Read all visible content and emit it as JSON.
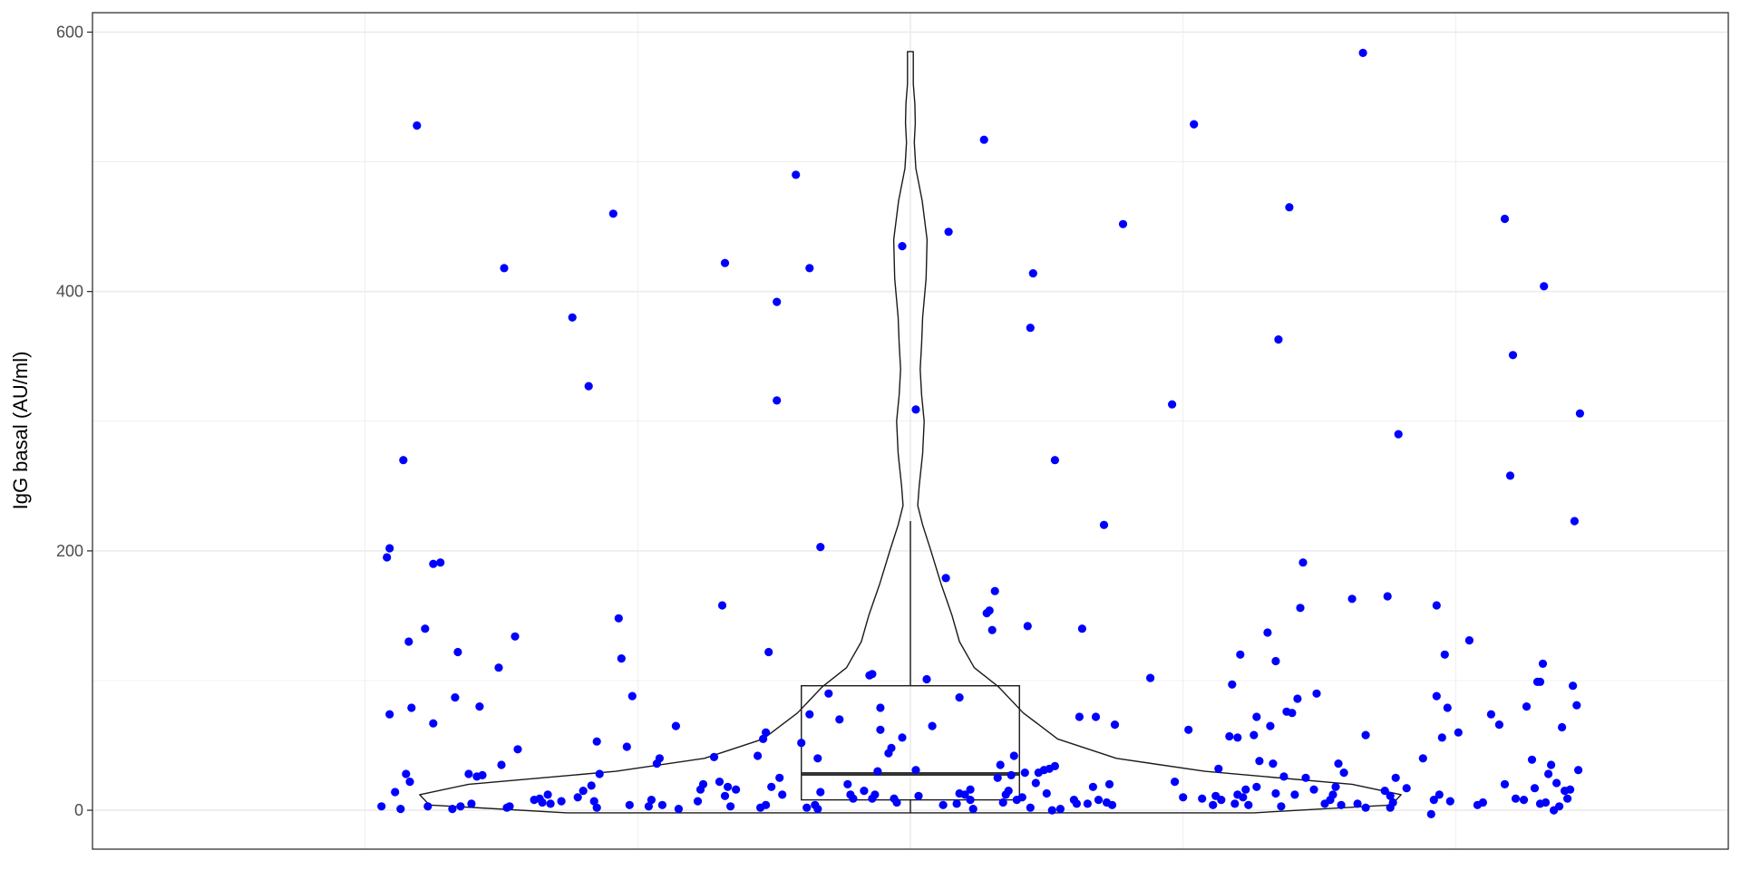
{
  "chart_data": {
    "type": "scatter",
    "overlays": [
      "violin",
      "boxplot"
    ],
    "title": "",
    "xlabel": "",
    "ylabel": "IgG basal (AU/ml)",
    "ylim": [
      -30,
      615
    ],
    "y_ticks": [
      0,
      200,
      400,
      600
    ],
    "y_tick_labels": [
      "0",
      "200",
      "400",
      "600"
    ],
    "grid": true,
    "point_color": "#0000ff",
    "box": {
      "q1": 8,
      "median": 28,
      "q3": 96,
      "whisker_low": -2,
      "whisker_high": 223
    },
    "violin_range": [
      -2,
      585
    ],
    "violin_profile": [
      {
        "y": -2,
        "w": 0.7
      },
      {
        "y": 4,
        "w": 0.98
      },
      {
        "y": 12,
        "w": 1.0
      },
      {
        "y": 20,
        "w": 0.9
      },
      {
        "y": 30,
        "w": 0.6
      },
      {
        "y": 40,
        "w": 0.42
      },
      {
        "y": 55,
        "w": 0.3
      },
      {
        "y": 75,
        "w": 0.23
      },
      {
        "y": 95,
        "w": 0.18
      },
      {
        "y": 110,
        "w": 0.13
      },
      {
        "y": 130,
        "w": 0.1
      },
      {
        "y": 150,
        "w": 0.085
      },
      {
        "y": 175,
        "w": 0.062
      },
      {
        "y": 200,
        "w": 0.042
      },
      {
        "y": 220,
        "w": 0.025
      },
      {
        "y": 235,
        "w": 0.015
      },
      {
        "y": 250,
        "w": 0.018
      },
      {
        "y": 275,
        "w": 0.025
      },
      {
        "y": 300,
        "w": 0.028
      },
      {
        "y": 320,
        "w": 0.023
      },
      {
        "y": 340,
        "w": 0.02
      },
      {
        "y": 360,
        "w": 0.023
      },
      {
        "y": 380,
        "w": 0.025
      },
      {
        "y": 410,
        "w": 0.032
      },
      {
        "y": 440,
        "w": 0.034
      },
      {
        "y": 470,
        "w": 0.024
      },
      {
        "y": 495,
        "w": 0.011
      },
      {
        "y": 515,
        "w": 0.008
      },
      {
        "y": 530,
        "w": 0.01
      },
      {
        "y": 545,
        "w": 0.009
      },
      {
        "y": 560,
        "w": 0.006
      },
      {
        "y": 585,
        "w": 0.006
      }
    ],
    "points": [
      {
        "x": -0.905,
        "y": 528
      },
      {
        "x": -0.97,
        "y": 3
      },
      {
        "x": -0.96,
        "y": 195
      },
      {
        "x": -0.955,
        "y": 202
      },
      {
        "x": -0.955,
        "y": 74
      },
      {
        "x": -0.945,
        "y": 14
      },
      {
        "x": -0.935,
        "y": 1
      },
      {
        "x": -0.93,
        "y": 270
      },
      {
        "x": -0.925,
        "y": 28
      },
      {
        "x": -0.92,
        "y": 130
      },
      {
        "x": -0.918,
        "y": 22
      },
      {
        "x": -0.915,
        "y": 79
      },
      {
        "x": -0.89,
        "y": 140
      },
      {
        "x": -0.885,
        "y": 3
      },
      {
        "x": -0.875,
        "y": 190
      },
      {
        "x": -0.862,
        "y": 191
      },
      {
        "x": -0.875,
        "y": 67
      },
      {
        "x": -0.84,
        "y": 1
      },
      {
        "x": -0.835,
        "y": 87
      },
      {
        "x": -0.83,
        "y": 122
      },
      {
        "x": -0.825,
        "y": 3
      },
      {
        "x": -0.81,
        "y": 28
      },
      {
        "x": -0.805,
        "y": 5
      },
      {
        "x": -0.795,
        "y": 26
      },
      {
        "x": -0.79,
        "y": 80
      },
      {
        "x": -0.785,
        "y": 27
      },
      {
        "x": -0.755,
        "y": 110
      },
      {
        "x": -0.75,
        "y": 35
      },
      {
        "x": -0.745,
        "y": 418
      },
      {
        "x": -0.74,
        "y": 2
      },
      {
        "x": -0.735,
        "y": 3
      },
      {
        "x": -0.725,
        "y": 134
      },
      {
        "x": -0.72,
        "y": 47
      },
      {
        "x": -0.69,
        "y": 8
      },
      {
        "x": -0.68,
        "y": 9
      },
      {
        "x": -0.675,
        "y": 6
      },
      {
        "x": -0.665,
        "y": 12
      },
      {
        "x": -0.66,
        "y": 5
      },
      {
        "x": -0.64,
        "y": 7
      },
      {
        "x": -0.62,
        "y": 380
      },
      {
        "x": -0.61,
        "y": 10
      },
      {
        "x": -0.6,
        "y": 15
      },
      {
        "x": -0.59,
        "y": 327
      },
      {
        "x": -0.585,
        "y": 19
      },
      {
        "x": -0.58,
        "y": 7
      },
      {
        "x": -0.575,
        "y": 53
      },
      {
        "x": -0.57,
        "y": 28
      },
      {
        "x": -0.575,
        "y": 2
      },
      {
        "x": -0.545,
        "y": 460
      },
      {
        "x": -0.535,
        "y": 148
      },
      {
        "x": -0.53,
        "y": 117
      },
      {
        "x": -0.52,
        "y": 49
      },
      {
        "x": -0.515,
        "y": 4
      },
      {
        "x": -0.51,
        "y": 88
      },
      {
        "x": -0.48,
        "y": 3
      },
      {
        "x": -0.475,
        "y": 8
      },
      {
        "x": -0.465,
        "y": 36
      },
      {
        "x": -0.46,
        "y": 40
      },
      {
        "x": -0.455,
        "y": 4
      },
      {
        "x": -0.43,
        "y": 65
      },
      {
        "x": -0.425,
        "y": 1
      },
      {
        "x": -0.39,
        "y": 7
      },
      {
        "x": -0.385,
        "y": 16
      },
      {
        "x": -0.38,
        "y": 20
      },
      {
        "x": -0.36,
        "y": 41
      },
      {
        "x": -0.35,
        "y": 22
      },
      {
        "x": -0.34,
        "y": 11
      },
      {
        "x": -0.345,
        "y": 158
      },
      {
        "x": -0.34,
        "y": 422
      },
      {
        "x": -0.335,
        "y": 18
      },
      {
        "x": -0.33,
        "y": 3
      },
      {
        "x": -0.32,
        "y": 16
      },
      {
        "x": -0.28,
        "y": 42
      },
      {
        "x": -0.275,
        "y": 2
      },
      {
        "x": -0.27,
        "y": 55
      },
      {
        "x": -0.265,
        "y": 4
      },
      {
        "x": -0.265,
        "y": 60
      },
      {
        "x": -0.26,
        "y": 122
      },
      {
        "x": -0.255,
        "y": 18
      },
      {
        "x": -0.245,
        "y": 316
      },
      {
        "x": -0.245,
        "y": 392
      },
      {
        "x": -0.24,
        "y": 25
      },
      {
        "x": -0.235,
        "y": 12
      },
      {
        "x": -0.21,
        "y": 490
      },
      {
        "x": -0.2,
        "y": 52
      },
      {
        "x": -0.19,
        "y": 2
      },
      {
        "x": -0.185,
        "y": 418
      },
      {
        "x": -0.185,
        "y": 74
      },
      {
        "x": -0.175,
        "y": 4
      },
      {
        "x": -0.17,
        "y": 1
      },
      {
        "x": -0.17,
        "y": 40
      },
      {
        "x": -0.165,
        "y": 203
      },
      {
        "x": -0.165,
        "y": 14
      },
      {
        "x": -0.15,
        "y": 90
      },
      {
        "x": -0.13,
        "y": 70
      },
      {
        "x": -0.115,
        "y": 20
      },
      {
        "x": -0.11,
        "y": 12
      },
      {
        "x": -0.105,
        "y": 9
      },
      {
        "x": -0.085,
        "y": 15
      },
      {
        "x": -0.075,
        "y": 104
      },
      {
        "x": -0.07,
        "y": 105
      },
      {
        "x": -0.07,
        "y": 9
      },
      {
        "x": -0.065,
        "y": 12
      },
      {
        "x": -0.06,
        "y": 30
      },
      {
        "x": -0.055,
        "y": 62
      },
      {
        "x": -0.055,
        "y": 79
      },
      {
        "x": -0.04,
        "y": 44
      },
      {
        "x": -0.035,
        "y": 48
      },
      {
        "x": -0.03,
        "y": 9
      },
      {
        "x": -0.025,
        "y": 6
      },
      {
        "x": -0.015,
        "y": 56
      },
      {
        "x": -0.015,
        "y": 435
      },
      {
        "x": 0.01,
        "y": 309
      },
      {
        "x": 0.01,
        "y": 31
      },
      {
        "x": 0.015,
        "y": 11
      },
      {
        "x": 0.03,
        "y": 101
      },
      {
        "x": 0.04,
        "y": 65
      },
      {
        "x": 0.06,
        "y": 4
      },
      {
        "x": 0.065,
        "y": 179
      },
      {
        "x": 0.07,
        "y": 446
      },
      {
        "x": 0.085,
        "y": 5
      },
      {
        "x": 0.09,
        "y": 13
      },
      {
        "x": 0.09,
        "y": 87
      },
      {
        "x": 0.1,
        "y": 12
      },
      {
        "x": 0.11,
        "y": 16
      },
      {
        "x": 0.11,
        "y": 8
      },
      {
        "x": 0.115,
        "y": 1
      },
      {
        "x": 0.135,
        "y": 517
      },
      {
        "x": 0.14,
        "y": 152
      },
      {
        "x": 0.145,
        "y": 154
      },
      {
        "x": 0.15,
        "y": 139
      },
      {
        "x": 0.155,
        "y": 169
      },
      {
        "x": 0.16,
        "y": 25
      },
      {
        "x": 0.165,
        "y": 35
      },
      {
        "x": 0.17,
        "y": 6
      },
      {
        "x": 0.175,
        "y": 12
      },
      {
        "x": 0.18,
        "y": 15
      },
      {
        "x": 0.185,
        "y": 27
      },
      {
        "x": 0.19,
        "y": 42
      },
      {
        "x": 0.195,
        "y": 8
      },
      {
        "x": 0.205,
        "y": 10
      },
      {
        "x": 0.21,
        "y": 29
      },
      {
        "x": 0.215,
        "y": 142
      },
      {
        "x": 0.22,
        "y": 372
      },
      {
        "x": 0.225,
        "y": 414
      },
      {
        "x": 0.22,
        "y": 2
      },
      {
        "x": 0.23,
        "y": 21
      },
      {
        "x": 0.235,
        "y": 29
      },
      {
        "x": 0.245,
        "y": 31
      },
      {
        "x": 0.25,
        "y": 13
      },
      {
        "x": 0.255,
        "y": 32
      },
      {
        "x": 0.26,
        "y": 0
      },
      {
        "x": 0.265,
        "y": 270
      },
      {
        "x": 0.265,
        "y": 34
      },
      {
        "x": 0.275,
        "y": 1
      },
      {
        "x": 0.3,
        "y": 8
      },
      {
        "x": 0.305,
        "y": 5
      },
      {
        "x": 0.31,
        "y": 72
      },
      {
        "x": 0.315,
        "y": 140
      },
      {
        "x": 0.325,
        "y": 5
      },
      {
        "x": 0.335,
        "y": 18
      },
      {
        "x": 0.34,
        "y": 72
      },
      {
        "x": 0.345,
        "y": 8
      },
      {
        "x": 0.355,
        "y": 220
      },
      {
        "x": 0.36,
        "y": 6
      },
      {
        "x": 0.365,
        "y": 20
      },
      {
        "x": 0.37,
        "y": 4
      },
      {
        "x": 0.375,
        "y": 66
      },
      {
        "x": 0.39,
        "y": 452
      },
      {
        "x": 0.44,
        "y": 102
      },
      {
        "x": 0.48,
        "y": 313
      },
      {
        "x": 0.485,
        "y": 22
      },
      {
        "x": 0.5,
        "y": 10
      },
      {
        "x": 0.51,
        "y": 62
      },
      {
        "x": 0.52,
        "y": 529
      },
      {
        "x": 0.535,
        "y": 9
      },
      {
        "x": 0.555,
        "y": 4
      },
      {
        "x": 0.56,
        "y": 11
      },
      {
        "x": 0.565,
        "y": 32
      },
      {
        "x": 0.57,
        "y": 8
      },
      {
        "x": 0.585,
        "y": 57
      },
      {
        "x": 0.59,
        "y": 97
      },
      {
        "x": 0.595,
        "y": 5
      },
      {
        "x": 0.6,
        "y": 56
      },
      {
        "x": 0.6,
        "y": 12
      },
      {
        "x": 0.605,
        "y": 120
      },
      {
        "x": 0.61,
        "y": 10
      },
      {
        "x": 0.615,
        "y": 16
      },
      {
        "x": 0.62,
        "y": 4
      },
      {
        "x": 0.63,
        "y": 58
      },
      {
        "x": 0.635,
        "y": 72
      },
      {
        "x": 0.635,
        "y": 18
      },
      {
        "x": 0.64,
        "y": 38
      },
      {
        "x": 0.655,
        "y": 137
      },
      {
        "x": 0.66,
        "y": 65
      },
      {
        "x": 0.665,
        "y": 36
      },
      {
        "x": 0.67,
        "y": 115
      },
      {
        "x": 0.67,
        "y": 13
      },
      {
        "x": 0.675,
        "y": 363
      },
      {
        "x": 0.68,
        "y": 3
      },
      {
        "x": 0.685,
        "y": 26
      },
      {
        "x": 0.69,
        "y": 76
      },
      {
        "x": 0.695,
        "y": 465
      },
      {
        "x": 0.7,
        "y": 75
      },
      {
        "x": 0.705,
        "y": 12
      },
      {
        "x": 0.71,
        "y": 86
      },
      {
        "x": 0.715,
        "y": 156
      },
      {
        "x": 0.72,
        "y": 191
      },
      {
        "x": 0.725,
        "y": 25
      },
      {
        "x": 0.74,
        "y": 16
      },
      {
        "x": 0.745,
        "y": 90
      },
      {
        "x": 0.76,
        "y": 5
      },
      {
        "x": 0.77,
        "y": 8
      },
      {
        "x": 0.775,
        "y": 12
      },
      {
        "x": 0.78,
        "y": 18
      },
      {
        "x": 0.785,
        "y": 36
      },
      {
        "x": 0.79,
        "y": 4
      },
      {
        "x": 0.795,
        "y": 29
      },
      {
        "x": 0.81,
        "y": 163
      },
      {
        "x": 0.82,
        "y": 5
      },
      {
        "x": 0.83,
        "y": 584
      },
      {
        "x": 0.835,
        "y": 2
      },
      {
        "x": 0.835,
        "y": 58
      },
      {
        "x": 0.87,
        "y": 15
      },
      {
        "x": 0.875,
        "y": 165
      },
      {
        "x": 0.88,
        "y": 11
      },
      {
        "x": 0.88,
        "y": 2
      },
      {
        "x": 0.885,
        "y": 6
      },
      {
        "x": 0.89,
        "y": 25
      },
      {
        "x": 0.895,
        "y": 290
      },
      {
        "x": 0.91,
        "y": 17
      },
      {
        "x": 0.94,
        "y": 40
      },
      {
        "x": 0.955,
        "y": -3
      },
      {
        "x": 0.96,
        "y": 8
      },
      {
        "x": 0.965,
        "y": 158
      },
      {
        "x": 0.965,
        "y": 88
      },
      {
        "x": 0.97,
        "y": 12
      },
      {
        "x": 0.975,
        "y": 56
      },
      {
        "x": 0.98,
        "y": 120
      },
      {
        "x": 0.985,
        "y": 79
      },
      {
        "x": 0.99,
        "y": 7
      },
      {
        "x": 1.005,
        "y": 60
      },
      {
        "x": 1.025,
        "y": 131
      },
      {
        "x": 1.04,
        "y": 4
      },
      {
        "x": 1.05,
        "y": 6
      },
      {
        "x": 1.065,
        "y": 74
      },
      {
        "x": 1.08,
        "y": 66
      },
      {
        "x": 1.09,
        "y": 20
      },
      {
        "x": 1.09,
        "y": 456
      },
      {
        "x": 1.1,
        "y": 258
      },
      {
        "x": 1.105,
        "y": 351
      },
      {
        "x": 1.11,
        "y": 9
      },
      {
        "x": 1.125,
        "y": 8
      },
      {
        "x": 1.13,
        "y": 80
      },
      {
        "x": 1.14,
        "y": 39
      },
      {
        "x": 1.145,
        "y": 17
      },
      {
        "x": 1.15,
        "y": 99
      },
      {
        "x": 1.155,
        "y": 5
      },
      {
        "x": 1.155,
        "y": 99
      },
      {
        "x": 1.16,
        "y": 113
      },
      {
        "x": 1.162,
        "y": 404
      },
      {
        "x": 1.165,
        "y": 6
      },
      {
        "x": 1.17,
        "y": 28
      },
      {
        "x": 1.175,
        "y": 35
      },
      {
        "x": 1.18,
        "y": 0
      },
      {
        "x": 1.185,
        "y": 21
      },
      {
        "x": 1.19,
        "y": 3
      },
      {
        "x": 1.195,
        "y": 64
      },
      {
        "x": 1.2,
        "y": 15
      },
      {
        "x": 1.205,
        "y": 9
      },
      {
        "x": 1.21,
        "y": 16
      },
      {
        "x": 1.215,
        "y": 96
      },
      {
        "x": 1.218,
        "y": 223
      },
      {
        "x": 1.222,
        "y": 81
      },
      {
        "x": 1.225,
        "y": 31
      },
      {
        "x": 1.228,
        "y": 306
      }
    ]
  }
}
